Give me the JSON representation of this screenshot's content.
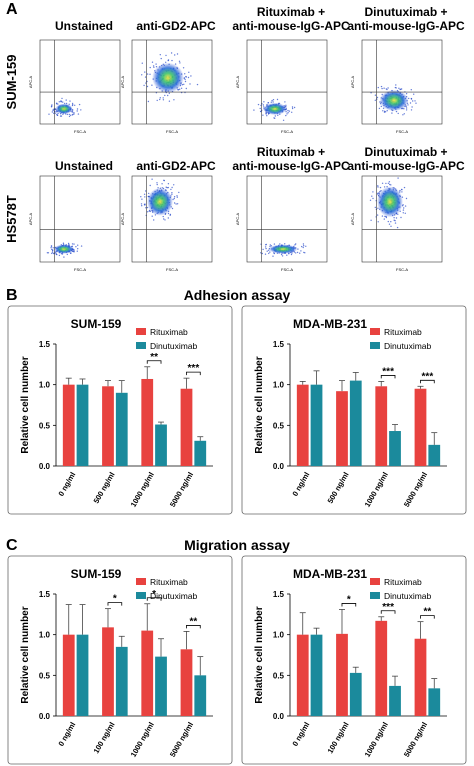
{
  "panel_a": {
    "label": "A",
    "x_axis_label": "FSC-A",
    "y_axis_label": "APC-A",
    "rows": [
      {
        "label": "SUM-159",
        "columns": [
          [
            "Unstained"
          ],
          [
            "anti-GD2-APC"
          ],
          [
            "Rituximab +",
            "anti-mouse-IgG-APC"
          ],
          [
            "Dinutuximab +",
            "anti-mouse-IgG-APC"
          ]
        ]
      },
      {
        "label": "HS578T",
        "columns": [
          [
            "Unstained"
          ],
          [
            "anti-GD2-APC"
          ],
          [
            "Rituximab +",
            "anti-mouse-IgG-APC"
          ],
          [
            "Dinutuximab +",
            "anti-mouse-IgG-APC"
          ]
        ]
      }
    ]
  },
  "panel_b": {
    "label": "B",
    "title": "Adhesion assay"
  },
  "panel_c": {
    "label": "C",
    "title": "Migration assay"
  },
  "chart_data": [
    {
      "type": "bar",
      "title": "SUM-159",
      "y_label": "Relative cell number",
      "categories": [
        "0 ng/ml",
        "500 ng/ml",
        "1000 ng/ml",
        "5000 ng/ml"
      ],
      "ylim": [
        0,
        1.5
      ],
      "yticks": [
        {
          "value": 0,
          "label": "0.0"
        },
        0.5,
        {
          "value": 1,
          "label": "1.0"
        },
        1.5
      ],
      "series": [
        {
          "name": "Rituximab",
          "color": "#e8423f",
          "values": [
            1.0,
            0.98,
            1.07,
            0.95
          ],
          "errors": [
            0.08,
            0.07,
            0.15,
            0.13
          ]
        },
        {
          "name": "Dinutuximab",
          "color": "#1b8a9c",
          "values": [
            1.0,
            0.9,
            0.51,
            0.31
          ],
          "errors": [
            0.07,
            0.15,
            0.03,
            0.05
          ]
        }
      ],
      "significance": [
        null,
        null,
        "**",
        "***"
      ]
    },
    {
      "type": "bar",
      "title": "MDA-MB-231",
      "y_label": "Relative cell number",
      "categories": [
        "0 ng/ml",
        "500 ng/ml",
        "1000 ng/ml",
        "5000 ng/ml"
      ],
      "ylim": [
        0,
        1.5
      ],
      "yticks": [
        {
          "value": 0,
          "label": "0.0"
        },
        0.5,
        {
          "value": 1,
          "label": "1.0"
        },
        1.5
      ],
      "series": [
        {
          "name": "Rituximab",
          "color": "#e8423f",
          "values": [
            1.0,
            0.92,
            0.98,
            0.95
          ],
          "errors": [
            0.04,
            0.13,
            0.06,
            0.03
          ]
        },
        {
          "name": "Dinutuximab",
          "color": "#1b8a9c",
          "values": [
            1.0,
            1.05,
            0.43,
            0.26
          ],
          "errors": [
            0.17,
            0.1,
            0.08,
            0.15
          ]
        }
      ],
      "significance": [
        null,
        null,
        "***",
        "***"
      ]
    },
    {
      "type": "bar",
      "title": "SUM-159",
      "y_label": "Relative cell number",
      "categories": [
        "0 ng/ml",
        "100 ng/ml",
        "1000 ng/ml",
        "5000 ng/ml"
      ],
      "ylim": [
        0,
        1.5
      ],
      "yticks": [
        {
          "value": 0,
          "label": "0.0"
        },
        0.5,
        {
          "value": 1,
          "label": "1.0"
        },
        1.5
      ],
      "series": [
        {
          "name": "Rituximab",
          "color": "#e8423f",
          "values": [
            1.0,
            1.09,
            1.05,
            0.82
          ],
          "errors": [
            0.37,
            0.23,
            0.33,
            0.22
          ]
        },
        {
          "name": "Dinutuximab",
          "color": "#1b8a9c",
          "values": [
            1.0,
            0.85,
            0.73,
            0.5
          ],
          "errors": [
            0.37,
            0.13,
            0.22,
            0.23
          ]
        }
      ],
      "significance": [
        null,
        "*",
        "*",
        "**"
      ]
    },
    {
      "type": "bar",
      "title": "MDA-MB-231",
      "y_label": "Relative cell number",
      "categories": [
        "0 ng/ml",
        "100 ng/ml",
        "1000 ng/ml",
        "5000 ng/ml"
      ],
      "ylim": [
        0,
        1.5
      ],
      "yticks": [
        {
          "value": 0,
          "label": "0.0"
        },
        0.5,
        {
          "value": 1,
          "label": "1.0"
        },
        1.5
      ],
      "series": [
        {
          "name": "Rituximab",
          "color": "#e8423f",
          "values": [
            1.0,
            1.01,
            1.17,
            0.95
          ],
          "errors": [
            0.27,
            0.3,
            0.05,
            0.21
          ]
        },
        {
          "name": "Dinutuximab",
          "color": "#1b8a9c",
          "values": [
            1.0,
            0.53,
            0.37,
            0.34
          ],
          "errors": [
            0.08,
            0.07,
            0.12,
            0.12
          ]
        }
      ],
      "significance": [
        null,
        "*",
        "***",
        "**"
      ]
    }
  ]
}
